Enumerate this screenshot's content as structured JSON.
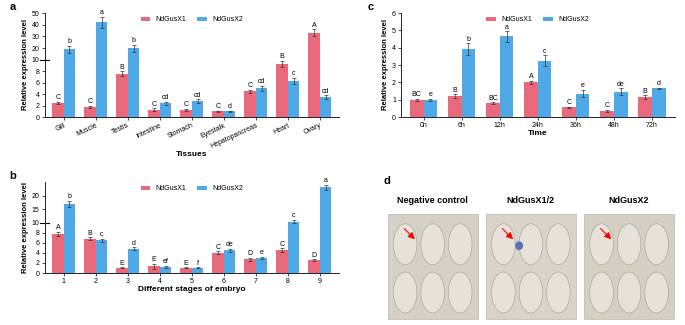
{
  "chart_data": [
    {
      "type": "bar",
      "title": "a",
      "x_label": "Tissues",
      "y_label": "Relative expression level",
      "categories": [
        "Gill",
        "Muscle",
        "Testis",
        "Intestine",
        "Stomach",
        "Eyestalk",
        "Hepatopancreas",
        "Heart",
        "Ovary"
      ],
      "ylim": [
        0,
        50
      ],
      "yticks": [
        0,
        2,
        4,
        6,
        8,
        10,
        20,
        30,
        40,
        50
      ],
      "legend": "upper center",
      "series": [
        {
          "name": "NdGusX1",
          "color": "#e8697b",
          "values": [
            2.5,
            1.8,
            7.6,
            1.3,
            1.2,
            1.0,
            4.5,
            9.3,
            33
          ],
          "errors": [
            0.2,
            0.2,
            0.4,
            0.2,
            0.2,
            0.1,
            0.3,
            0.5,
            3
          ],
          "letters": [
            "C",
            "C",
            "B",
            "C",
            "C",
            "C",
            "C",
            "B",
            "A"
          ]
        },
        {
          "name": "NdGusX2",
          "color": "#4fa9e6",
          "values": [
            19,
            42,
            20,
            2.4,
            2.8,
            1.0,
            5.0,
            6.3,
            3.5
          ],
          "errors": [
            3,
            5,
            3,
            0.3,
            0.3,
            0.1,
            0.4,
            0.5,
            0.3
          ],
          "letters": [
            "b",
            "a",
            "b",
            "cd",
            "cd",
            "d",
            "cd",
            "c",
            "cd"
          ]
        }
      ]
    },
    {
      "type": "bar",
      "title": "b",
      "x_label": "Different stages of embryo",
      "y_label": "Relative expression level",
      "categories": [
        "1",
        "2",
        "3",
        "4",
        "5",
        "6",
        "7",
        "8",
        "9"
      ],
      "ylim": [
        0,
        25
      ],
      "yticks": [
        0,
        2,
        4,
        6,
        8,
        10,
        15,
        20
      ],
      "legend": "upper center",
      "series": [
        {
          "name": "NdGusX1",
          "color": "#e8697b",
          "values": [
            7.8,
            6.8,
            1.0,
            1.3,
            1.0,
            4.0,
            2.7,
            4.5,
            2.5
          ],
          "errors": [
            0.4,
            0.3,
            0.1,
            0.5,
            0.1,
            0.3,
            0.3,
            0.4,
            0.2
          ],
          "letters": [
            "A",
            "B",
            "E",
            "E",
            "E",
            "C",
            "D",
            "C",
            "D"
          ]
        },
        {
          "name": "NdGusX2",
          "color": "#4fa9e6",
          "values": [
            17,
            6.5,
            4.8,
            1.2,
            1.0,
            4.5,
            3.0,
            10.5,
            23
          ],
          "errors": [
            1.0,
            0.3,
            0.3,
            0.2,
            0.1,
            0.3,
            0.2,
            0.6,
            1.0
          ],
          "letters": [
            "b",
            "c",
            "d",
            "ef",
            "f",
            "de",
            "e",
            "c",
            "a"
          ]
        }
      ]
    },
    {
      "type": "bar",
      "title": "c",
      "x_label": "Time",
      "y_label": "Relative expression level",
      "categories": [
        "0h",
        "6h",
        "12h",
        "24h",
        "36h",
        "48h",
        "72h"
      ],
      "ylim": [
        0,
        6
      ],
      "yticks": [
        0,
        1,
        2,
        3,
        4,
        5,
        6
      ],
      "legend": "upper center",
      "series": [
        {
          "name": "NdGusX1",
          "color": "#e8697b",
          "values": [
            1.0,
            1.2,
            0.8,
            2.0,
            0.55,
            0.35,
            1.15
          ],
          "errors": [
            0.05,
            0.1,
            0.05,
            0.1,
            0.05,
            0.05,
            0.1
          ],
          "letters": [
            "BC",
            "B",
            "BC",
            "A",
            "C",
            "C",
            "B"
          ]
        },
        {
          "name": "NdGusX2",
          "color": "#4fa9e6",
          "values": [
            1.0,
            3.9,
            4.65,
            3.25,
            1.35,
            1.45,
            1.65
          ],
          "errors": [
            0.05,
            0.35,
            0.3,
            0.3,
            0.2,
            0.2,
            0.05
          ],
          "letters": [
            "e",
            "b",
            "a",
            "c",
            "e",
            "de",
            "d"
          ]
        }
      ]
    }
  ],
  "panel_d": {
    "title": "d",
    "images": [
      "Negative control",
      "NdGusX1/2",
      "NdGusX2"
    ]
  }
}
